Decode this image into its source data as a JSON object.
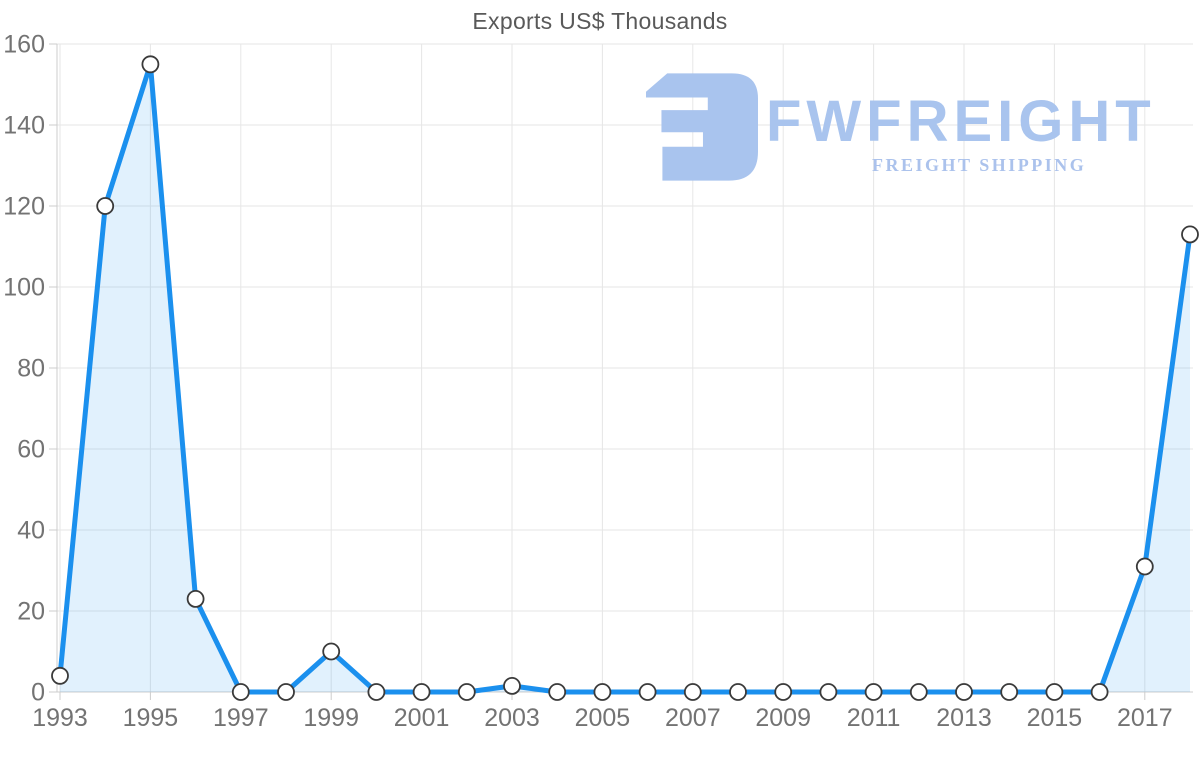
{
  "title": "Exports US$ Thousands",
  "watermark": {
    "brand": "FWFREIGHT",
    "tagline": "FREIGHT SHIPPING",
    "color": "#a9c4ee"
  },
  "chart_data": {
    "type": "area",
    "title": "Exports US$ Thousands",
    "xlabel": "",
    "ylabel": "",
    "x": [
      1993,
      1994,
      1995,
      1996,
      1997,
      1998,
      1999,
      2000,
      2001,
      2002,
      2003,
      2004,
      2005,
      2006,
      2007,
      2008,
      2009,
      2010,
      2011,
      2012,
      2013,
      2014,
      2015,
      2016,
      2017,
      2018
    ],
    "values": [
      4,
      120,
      155,
      23,
      0,
      0,
      10,
      0,
      0,
      0,
      1.5,
      0,
      0,
      0,
      0,
      0,
      0,
      0,
      0,
      0,
      0,
      0,
      0,
      0,
      31,
      113
    ],
    "ylim": [
      0,
      160
    ],
    "y_ticks": [
      0,
      20,
      40,
      60,
      80,
      100,
      120,
      140,
      160
    ],
    "x_tick_years": [
      1993,
      1995,
      1997,
      1999,
      2001,
      2003,
      2005,
      2007,
      2009,
      2011,
      2013,
      2015,
      2017
    ],
    "x_tick_labels": [
      "1993",
      "1995",
      "1997",
      "1999",
      "2001",
      "2003",
      "2005",
      "2007",
      "2009",
      "2011",
      "2013",
      "2015",
      "2017"
    ],
    "grid": true,
    "legend": "none",
    "colors": {
      "line": "#1b90ee",
      "fill": "#1b90ee",
      "fill_opacity": 0.13,
      "marker_fill": "#ffffff",
      "marker_stroke": "#3a3a3a",
      "gridline": "#e6e6e6",
      "axis": "#cccccc",
      "tick_label": "#737373",
      "title": "#595959"
    }
  }
}
